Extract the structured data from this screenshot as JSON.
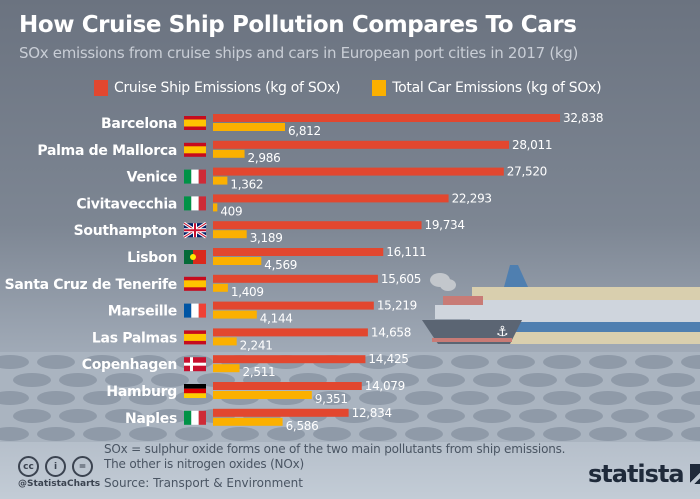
{
  "chart_data": {
    "type": "bar",
    "orientation": "horizontal",
    "title": "How Cruise Ship Pollution Compares To Cars",
    "subtitle": "SOx emissions from cruise ships and cars in European port cities in 2017 (kg)",
    "categories": [
      "Barcelona",
      "Palma de Mallorca",
      "Venice",
      "Civitavecchia",
      "Southampton",
      "Lisbon",
      "Santa Cruz de Tenerife",
      "Marseille",
      "Las Palmas",
      "Copenhagen",
      "Hamburg",
      "Naples"
    ],
    "flags": [
      "es",
      "es",
      "it",
      "it",
      "gb",
      "pt",
      "es",
      "fr",
      "es",
      "dk",
      "de",
      "it"
    ],
    "series": [
      {
        "name": "Cruise Ship Emissions (kg of SOx)",
        "color": "#e2472f",
        "values": [
          32838,
          28011,
          27520,
          22293,
          19734,
          16111,
          15605,
          15219,
          14658,
          14425,
          14079,
          12834
        ],
        "labels": [
          "32,838",
          "28,011",
          "27,520",
          "22,293",
          "19,734",
          "16,111",
          "15,605",
          "15,219",
          "14,658",
          "14,425",
          "14,079",
          "12,834"
        ]
      },
      {
        "name": "Total Car Emissions (kg of SOx)",
        "color": "#fbb000",
        "values": [
          6812,
          2986,
          1362,
          409,
          3189,
          4569,
          1409,
          4144,
          2241,
          2511,
          9351,
          6586
        ],
        "labels": [
          "6,812",
          "2,986",
          "1,362",
          "409",
          "3,189",
          "4,569",
          "1,409",
          "4,144",
          "2,241",
          "2,511",
          "9,351",
          "6,586"
        ]
      }
    ],
    "legend_position": "top",
    "grid": false
  },
  "footer": {
    "note_line1": "SOx = sulphur oxide forms one of the two main pollutants from ship emissions.",
    "note_line2": "The other is nitrogen oxides (NOx)",
    "source": "Source: Transport & Environment",
    "handle": "@StatistaCharts",
    "logo": "statista",
    "cc_icons": [
      "cc",
      "by",
      "nd"
    ]
  }
}
